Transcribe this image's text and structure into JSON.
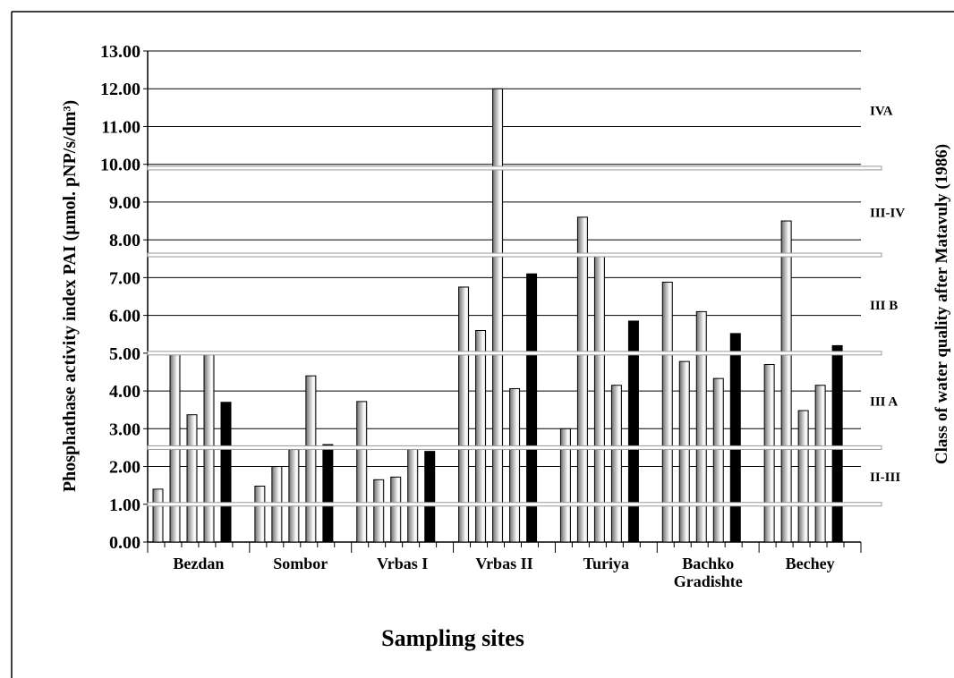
{
  "chart_data": {
    "type": "bar",
    "x_label": "Sampling sites",
    "y_label": "Phosphathase activity index  PAI  (µmol. pNP/s/dm³)",
    "y2_label": "Class of water quality after Matavuly (1986)",
    "categories": [
      "Bezdan",
      "Sombor",
      "Vrbas I",
      "Vrbas II",
      "Turiya",
      "Bachko\nGradishte",
      "Bechey"
    ],
    "series": [
      {
        "color": "#707070",
        "values": [
          1.4,
          1.48,
          3.72,
          6.75,
          3.0,
          6.88,
          4.7
        ]
      },
      {
        "color": "#707070",
        "values": [
          5.0,
          2.0,
          1.65,
          5.6,
          8.6,
          4.78,
          8.5
        ]
      },
      {
        "color": "#707070",
        "values": [
          3.37,
          2.45,
          1.72,
          12.0,
          7.62,
          6.1,
          3.48
        ]
      },
      {
        "color": "#707070",
        "values": [
          5.0,
          4.4,
          2.52,
          4.06,
          4.15,
          4.33,
          4.15
        ]
      },
      {
        "color": "#000000",
        "values": [
          3.7,
          2.58,
          2.4,
          7.1,
          5.85,
          5.52,
          5.2
        ]
      }
    ],
    "ylim": [
      0,
      13
    ],
    "yticks": [
      {
        "value": 0,
        "label": "0.00"
      },
      {
        "value": 1,
        "label": "1.00"
      },
      {
        "value": 2,
        "label": "2.00"
      },
      {
        "value": 3,
        "label": "3.00"
      },
      {
        "value": 4,
        "label": "4.00"
      },
      {
        "value": 5,
        "label": "5.00"
      },
      {
        "value": 6,
        "label": "6.00"
      },
      {
        "value": 7,
        "label": "7.00"
      },
      {
        "value": 8,
        "label": "8.00"
      },
      {
        "value": 9,
        "label": "9.00"
      },
      {
        "value": 10,
        "label": "10.00"
      },
      {
        "value": 11,
        "label": "11.00"
      },
      {
        "value": 12,
        "label": "12.00"
      },
      {
        "value": 13,
        "label": "13.00"
      }
    ],
    "grid": true,
    "class_boundaries": [
      1.0,
      2.5,
      5.0,
      7.6,
      9.9
    ],
    "class_labels": [
      "II-III",
      "III A",
      "III B",
      "III-IV",
      "IVA"
    ]
  }
}
